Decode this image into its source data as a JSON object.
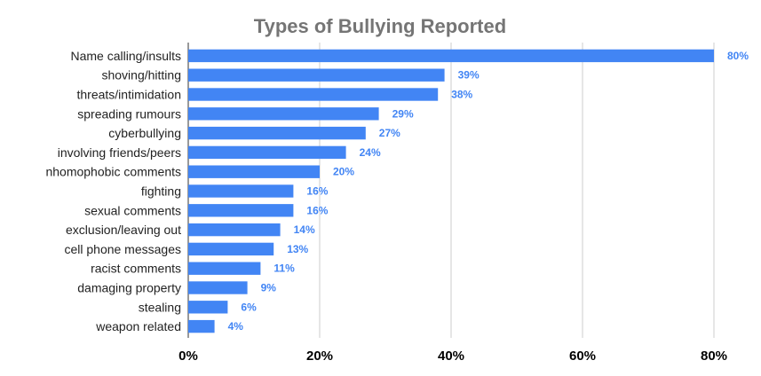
{
  "chart_data": {
    "type": "bar",
    "orientation": "horizontal",
    "title": "Types of Bullying Reported",
    "xlabel": "",
    "ylabel": "",
    "categories": [
      "Name calling/insults",
      "shoving/hitting",
      "threats/intimidation",
      "spreading rumours",
      "cyberbullying",
      "involving friends/peers",
      "nhomophobic comments",
      "fighting",
      "sexual comments",
      "exclusion/leaving out",
      "cell phone messages",
      "racist comments",
      "damaging property",
      "stealing",
      "weapon related"
    ],
    "values": [
      80,
      39,
      38,
      29,
      27,
      24,
      20,
      16,
      16,
      14,
      13,
      11,
      9,
      6,
      4
    ],
    "value_labels": [
      "80%",
      "39%",
      "38%",
      "29%",
      "27%",
      "24%",
      "20%",
      "16%",
      "16%",
      "14%",
      "13%",
      "11%",
      "9%",
      "6%",
      "4%"
    ],
    "xlim": [
      0,
      80
    ],
    "x_ticks": [
      0,
      20,
      40,
      60,
      80
    ],
    "x_tick_labels": [
      "0%",
      "20%",
      "40%",
      "60%",
      "80%"
    ],
    "grid": true,
    "colors": {
      "bar": "#4285f4",
      "value_label": "#4285f4",
      "title": "#757575"
    }
  }
}
